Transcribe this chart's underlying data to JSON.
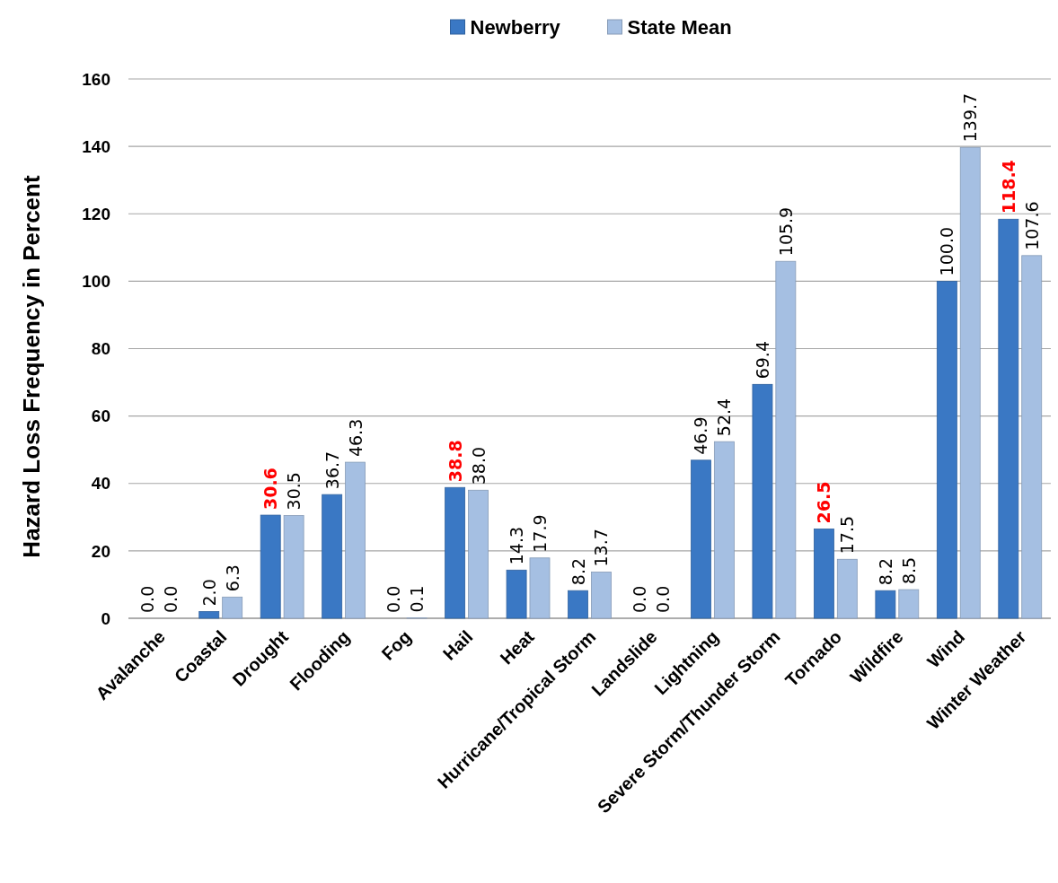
{
  "chart_data": {
    "type": "bar",
    "ylabel": "Hazard Loss Frequency in Percent",
    "categories": [
      "Avalanche",
      "Coastal",
      "Drought",
      "Flooding",
      "Fog",
      "Hail",
      "Heat",
      "Hurricane/Tropical Storm",
      "Landslide",
      "Lightning",
      "Severe Storm/Thunder Storm",
      "Tornado",
      "Wildfire",
      "Wind",
      "Winter Weather"
    ],
    "series": [
      {
        "name": "Newberry",
        "color": "#3a78c4",
        "values": [
          0,
          2,
          30.6,
          36.7,
          0,
          38.8,
          14.3,
          8.2,
          0,
          46.9,
          69.4,
          26.5,
          8.2,
          100,
          118.4
        ],
        "value_labels": [
          "0.0",
          "2.0",
          "30.6",
          "36.7",
          "0.0",
          "38.8",
          "14.3",
          "8.2",
          "0.0",
          "46.9",
          "69.4",
          "26.5",
          "8.2",
          "100.0",
          "118.4"
        ]
      },
      {
        "name": "State Mean",
        "color": "#a5bfe2",
        "values": [
          0,
          6.3,
          30.5,
          46.3,
          0.1,
          38,
          17.9,
          13.7,
          0,
          52.4,
          105.9,
          17.5,
          8.5,
          139.7,
          107.6
        ],
        "value_labels": [
          "0.0",
          "6.3",
          "30.5",
          "46.3",
          "0.1",
          "38.0",
          "17.9",
          "13.7",
          "0.0",
          "52.4",
          "105.9",
          "17.5",
          "8.5",
          "139.7",
          "107.6"
        ]
      }
    ],
    "ylim": [
      0,
      160
    ],
    "yticks": [
      0,
      20,
      40,
      60,
      80,
      100,
      120,
      140,
      160
    ],
    "grid": "y",
    "legend": "top"
  }
}
